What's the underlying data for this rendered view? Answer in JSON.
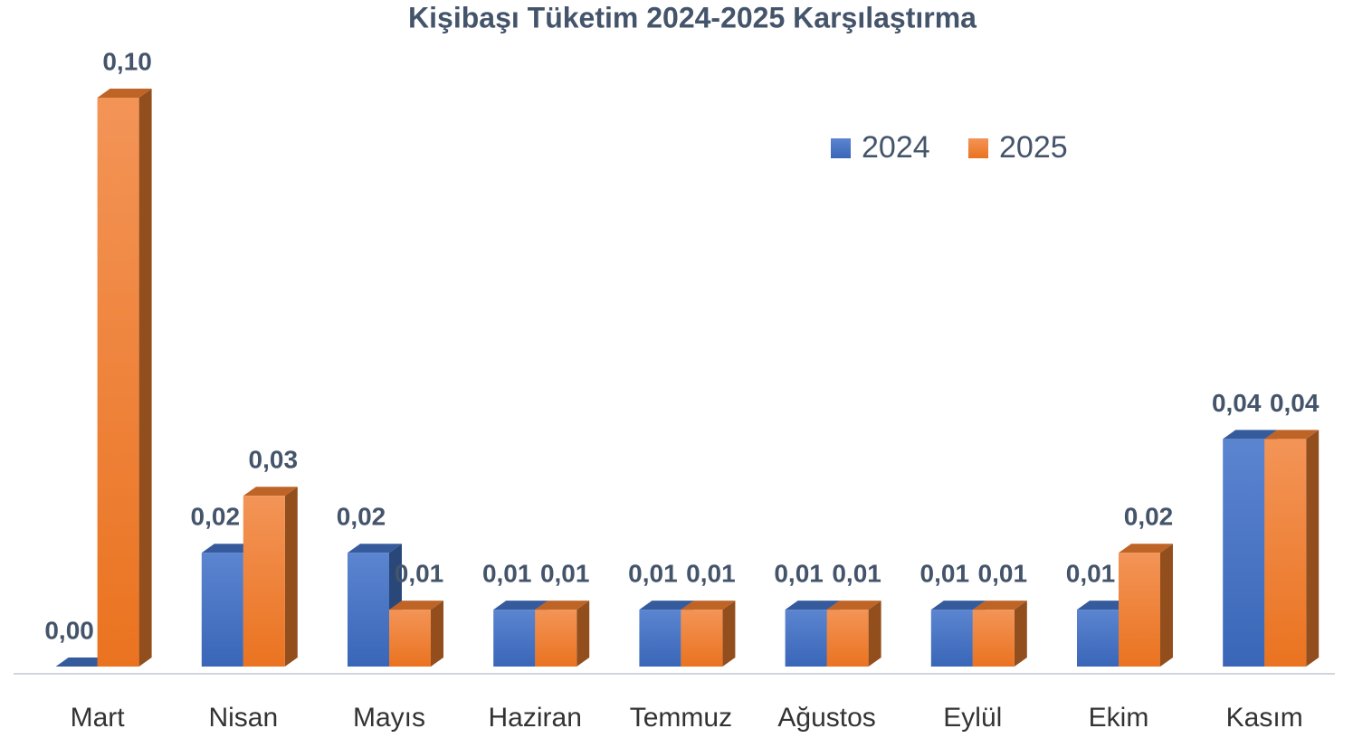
{
  "chart_data": {
    "type": "bar3d",
    "title": "Kişibaşı Tüketim 2024-2025 Karşılaştırma",
    "categories": [
      "Mart",
      "Nisan",
      "Mayıs",
      "Haziran",
      "Temmuz",
      "Ağustos",
      "Eylül",
      "Ekim",
      "Kasım"
    ],
    "series": [
      {
        "name": "2024",
        "color": "#4472c4",
        "values": [
          0.0,
          0.02,
          0.02,
          0.01,
          0.01,
          0.01,
          0.01,
          0.01,
          0.04
        ],
        "value_labels": [
          "0,00",
          "0,02",
          "0,02",
          "0,01",
          "0,01",
          "0,01",
          "0,01",
          "0,01",
          "0,04"
        ]
      },
      {
        "name": "2025",
        "color": "#ed7d31",
        "values": [
          0.1,
          0.03,
          0.01,
          0.01,
          0.01,
          0.01,
          0.01,
          0.02,
          0.04
        ],
        "value_labels": [
          "0,10",
          "0,03",
          "0,01",
          "0,01",
          "0,01",
          "0,01",
          "0,01",
          "0,02",
          "0,04"
        ]
      }
    ],
    "legend": "top-right"
  }
}
